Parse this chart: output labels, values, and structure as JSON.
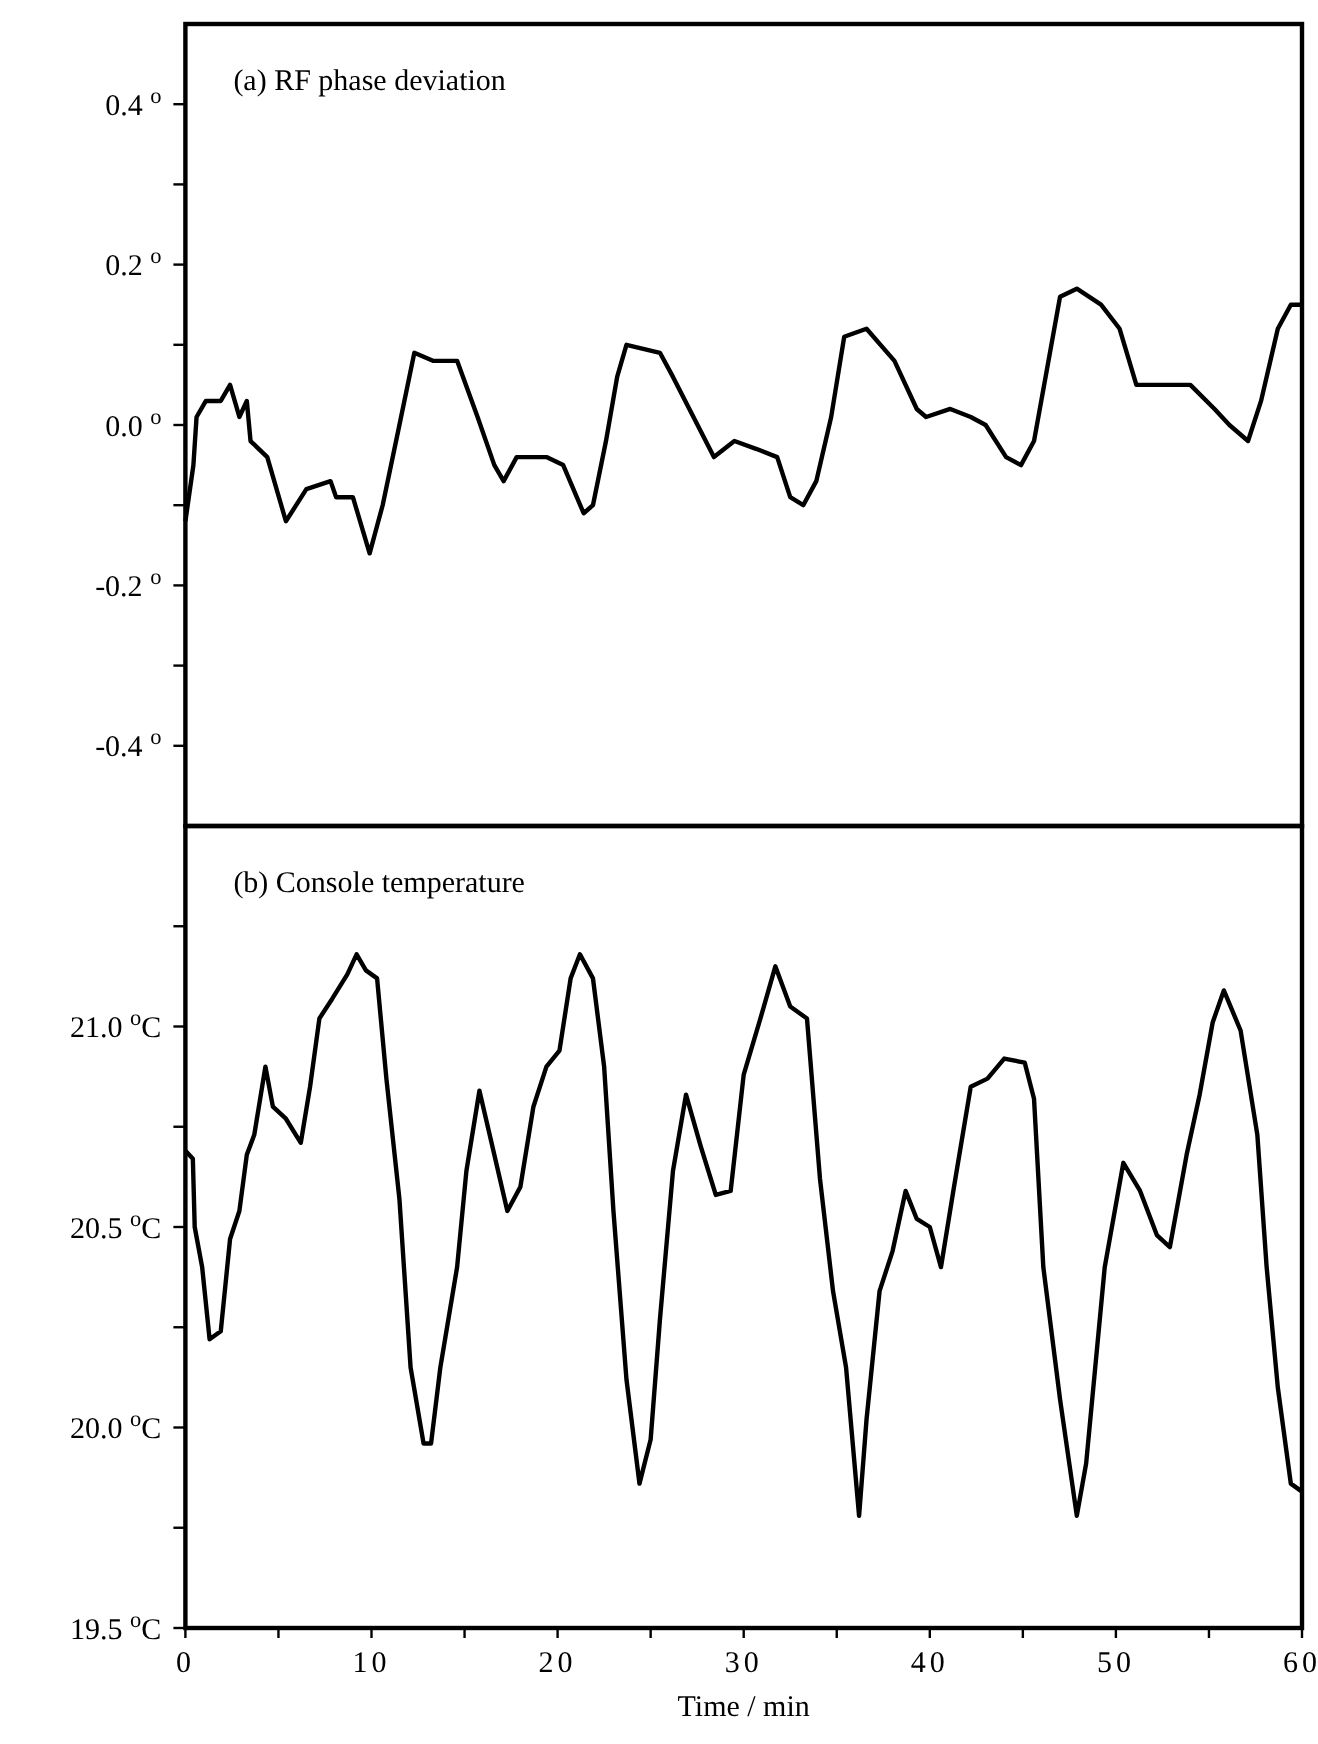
{
  "chart_data": [
    {
      "type": "line",
      "title": "(a) RF phase deviation",
      "tick_labels": "y",
      "xlim": [
        0,
        60
      ],
      "ylim": [
        -0.5,
        0.5
      ],
      "yticks": [
        {
          "value": -0.4,
          "label": "-0.4 $^{o}$"
        },
        {
          "value": -0.3,
          "label": null
        },
        {
          "value": -0.2,
          "label": "-0.2 $^{o}$"
        },
        {
          "value": -0.1,
          "label": null
        },
        {
          "value": 0,
          "label": "0.0 $^{o}$"
        },
        {
          "value": 0.1,
          "label": null
        },
        {
          "value": 0.2,
          "label": "0.2 $^{o}$"
        },
        {
          "value": 0.3,
          "label": null
        },
        {
          "value": 0.4,
          "label": "0.4 $^{o}$"
        }
      ],
      "grid": false,
      "marker": "none",
      "line_style": "solid",
      "series": [
        {
          "color": "#000000",
          "x": [
            0,
            0.43,
            0.6,
            1.1,
            1.9,
            2.4,
            2.9,
            3.3,
            3.5,
            4.4,
            5.4,
            6.5,
            7.8,
            8.1,
            9.0,
            9.9,
            10.6,
            11.5,
            12.3,
            13.3,
            14.6,
            15.7,
            16.6,
            17.1,
            17.8,
            19.4,
            20.3,
            21.4,
            21.9,
            22.6,
            23.2,
            23.7,
            25.5,
            26.2,
            27.3,
            28.4,
            29.5,
            30.7,
            31.8,
            32.5,
            33.2,
            33.9,
            34.7,
            35.4,
            36.6,
            38.1,
            39.3,
            39.8,
            41.1,
            42.2,
            43.0,
            44.1,
            44.9,
            45.6,
            47.0,
            47.9,
            49.2,
            50.2,
            51.1,
            52.4,
            54.0,
            55.3,
            56.1,
            57.1,
            57.8,
            58.7,
            59.4,
            60
          ],
          "values": [
            -0.12,
            -0.05,
            0.01,
            0.03,
            0.03,
            0.05,
            0.01,
            0.03,
            -0.02,
            -0.04,
            -0.12,
            -0.08,
            -0.07,
            -0.09,
            -0.09,
            -0.16,
            -0.1,
            0,
            0.09,
            0.08,
            0.08,
            0.01,
            -0.05,
            -0.07,
            -0.04,
            -0.04,
            -0.05,
            -0.11,
            -0.1,
            -0.02,
            0.06,
            0.1,
            0.09,
            0.06,
            0.01,
            -0.04,
            -0.02,
            -0.03,
            -0.04,
            -0.09,
            -0.1,
            -0.07,
            0.01,
            0.11,
            0.12,
            0.08,
            0.02,
            0.01,
            0.02,
            0.01,
            0,
            -0.04,
            -0.05,
            -0.02,
            0.16,
            0.17,
            0.15,
            0.12,
            0.05,
            0.05,
            0.05,
            0.02,
            0,
            -0.02,
            0.03,
            0.12,
            0.15,
            0.15
          ]
        }
      ]
    },
    {
      "type": "line",
      "title": "(b) Console temperature",
      "xlabel": "Time / min",
      "xlim": [
        0,
        60
      ],
      "ylim": [
        19.5,
        21.5
      ],
      "xticks": [
        0,
        {
          "value": 5,
          "label": null
        },
        10,
        {
          "value": 15,
          "label": null
        },
        20,
        {
          "value": 25,
          "label": null
        },
        30,
        {
          "value": 35,
          "label": null
        },
        40,
        {
          "value": 45,
          "label": null
        },
        50,
        {
          "value": 55,
          "label": null
        },
        60
      ],
      "yticks": [
        {
          "value": 19.5,
          "label": "19.5 $^{o}$C"
        },
        {
          "value": 19.75,
          "label": null
        },
        {
          "value": 20,
          "label": "20.0 $^{o}$C"
        },
        {
          "value": 20.25,
          "label": null
        },
        {
          "value": 20.5,
          "label": "20.5 $^{o}$C"
        },
        {
          "value": 20.75,
          "label": null
        },
        {
          "value": 21,
          "label": "21.0 $^{o}$C"
        },
        {
          "value": 21.25,
          "label": null
        }
      ],
      "grid": false,
      "marker": "none",
      "line_style": "solid",
      "series": [
        {
          "color": "#000000",
          "x": [
            0,
            0.4,
            0.5,
            0.9,
            1.3,
            1.9,
            2.4,
            2.9,
            3.3,
            3.7,
            4.3,
            4.7,
            5.4,
            6.2,
            6.7,
            7.2,
            7.9,
            8.7,
            9.2,
            9.7,
            10.3,
            10.8,
            11.5,
            12.1,
            12.8,
            13.2,
            13.7,
            14.6,
            15.1,
            15.8,
            16.4,
            17.3,
            18.0,
            18.7,
            19.4,
            20.1,
            20.7,
            21.2,
            21.9,
            22.5,
            23.0,
            23.7,
            24.4,
            25.0,
            25.5,
            26.2,
            26.9,
            27.7,
            28.5,
            29.3,
            30.0,
            30.9,
            31.7,
            32.5,
            33.4,
            34.1,
            34.8,
            35.5,
            36.2,
            36.6,
            37.3,
            38.0,
            38.7,
            39.3,
            40.0,
            40.6,
            41.3,
            42.2,
            43.1,
            44.0,
            45.1,
            45.6,
            46.1,
            47.0,
            47.9,
            48.4,
            49.4,
            50.4,
            51.3,
            52.2,
            52.9,
            53.8,
            54.5,
            55.2,
            55.8,
            56.7,
            57.6,
            58.1,
            58.7,
            59.4,
            60
          ],
          "values": [
            20.69,
            20.67,
            20.5,
            20.4,
            20.22,
            20.24,
            20.47,
            20.54,
            20.68,
            20.73,
            20.9,
            20.8,
            20.77,
            20.71,
            20.85,
            21.02,
            21.07,
            21.13,
            21.18,
            21.14,
            21.12,
            20.87,
            20.57,
            20.15,
            19.96,
            19.96,
            20.15,
            20.4,
            20.64,
            20.84,
            20.72,
            20.54,
            20.6,
            20.8,
            20.9,
            20.94,
            21.12,
            21.18,
            21.12,
            20.9,
            20.54,
            20.12,
            19.86,
            19.97,
            20.27,
            20.64,
            20.83,
            20.7,
            20.58,
            20.59,
            20.88,
            21.02,
            21.15,
            21.05,
            21.02,
            20.62,
            20.34,
            20.15,
            19.78,
            20.02,
            20.34,
            20.44,
            20.59,
            20.52,
            20.5,
            20.4,
            20.6,
            20.85,
            20.87,
            20.92,
            20.91,
            20.82,
            20.4,
            20.07,
            19.78,
            19.91,
            20.4,
            20.66,
            20.59,
            20.48,
            20.45,
            20.68,
            20.83,
            21.01,
            21.09,
            20.99,
            20.73,
            20.4,
            20.1,
            19.86,
            19.84
          ]
        }
      ]
    }
  ]
}
